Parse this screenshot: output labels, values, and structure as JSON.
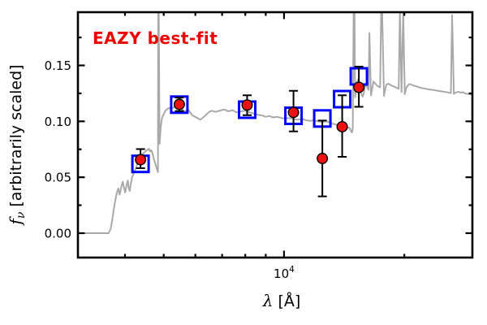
{
  "figure": {
    "annotation": "EAZY best-fit",
    "annotation_color": "#ee0000",
    "colors": {
      "background": "#ffffff",
      "axes": "#000000",
      "spectrum_line": "#a9a9a9",
      "observed_marker": "#ee1111",
      "observed_marker_edge": "#000000",
      "errorbar": "#000000",
      "model_marker": "#0000ff"
    }
  },
  "chart_data": {
    "type": "line",
    "title": "",
    "xlabel_symbol": "λ",
    "xlabel_unit": " [Å]",
    "ylabel_symbol": "f",
    "ylabel_sub": "ν",
    "ylabel_rest": " [arbitrarily scaled]",
    "x_scale": "log",
    "xlim": [
      3050,
      29600
    ],
    "ylim": [
      -0.0218,
      0.1976
    ],
    "grid": false,
    "legend": "none",
    "x_ticks_major": [
      10000
    ],
    "x_tick_major_labels": [
      {
        "base": "10",
        "exp": "4"
      }
    ],
    "x_ticks_minor": [
      4000,
      5000,
      6000,
      7000,
      8000,
      9000,
      20000
    ],
    "y_ticks_major": [
      0.0,
      0.05,
      0.1,
      0.15
    ],
    "y_tick_major_labels": [
      "0.00",
      "0.05",
      "0.10",
      "0.15"
    ],
    "y_ticks_minor": [
      0.025,
      0.075,
      0.125,
      0.175
    ],
    "series": [
      {
        "name": "EAZY best-fit template spectrum",
        "type": "line",
        "color": "#a9a9a9",
        "points": [
          [
            3050,
            0.0
          ],
          [
            3200,
            0.0
          ],
          [
            3400,
            0.0
          ],
          [
            3640,
            0.0
          ],
          [
            3685,
            0.004
          ],
          [
            3720,
            0.013
          ],
          [
            3755,
            0.023
          ],
          [
            3790,
            0.031
          ],
          [
            3822,
            0.037
          ],
          [
            3850,
            0.04
          ],
          [
            3876,
            0.0345
          ],
          [
            3898,
            0.038
          ],
          [
            3922,
            0.0425
          ],
          [
            3950,
            0.046
          ],
          [
            3980,
            0.04
          ],
          [
            4006,
            0.0365
          ],
          [
            4036,
            0.043
          ],
          [
            4066,
            0.047
          ],
          [
            4088,
            0.04
          ],
          [
            4112,
            0.0378
          ],
          [
            4136,
            0.044
          ],
          [
            4166,
            0.05
          ],
          [
            4206,
            0.0535
          ],
          [
            4256,
            0.058
          ],
          [
            4312,
            0.0635
          ],
          [
            4376,
            0.068
          ],
          [
            4440,
            0.0712
          ],
          [
            4512,
            0.0736
          ],
          [
            4556,
            0.0746
          ],
          [
            4590,
            0.0755
          ],
          [
            4622,
            0.0733
          ],
          [
            4656,
            0.074
          ],
          [
            4690,
            0.071
          ],
          [
            4726,
            0.066
          ],
          [
            4766,
            0.0616
          ],
          [
            4806,
            0.0576
          ],
          [
            4836,
            0.0546
          ],
          [
            4843,
            0.198
          ],
          [
            4860,
            0.198
          ],
          [
            4882,
            0.08
          ],
          [
            4916,
            0.0952
          ],
          [
            4950,
            0.103
          ],
          [
            5000,
            0.1066
          ],
          [
            5060,
            0.11
          ],
          [
            5122,
            0.1116
          ],
          [
            5246,
            0.1122
          ],
          [
            5370,
            0.1126
          ],
          [
            5496,
            0.1118
          ],
          [
            5560,
            0.1106
          ],
          [
            5626,
            0.1088
          ],
          [
            5690,
            0.1096
          ],
          [
            5760,
            0.1103
          ],
          [
            5830,
            0.1078
          ],
          [
            5896,
            0.1053
          ],
          [
            5966,
            0.1043
          ],
          [
            6030,
            0.1036
          ],
          [
            6100,
            0.1025
          ],
          [
            6170,
            0.1015
          ],
          [
            6240,
            0.1028
          ],
          [
            6316,
            0.1043
          ],
          [
            6390,
            0.106
          ],
          [
            6466,
            0.1078
          ],
          [
            6540,
            0.109
          ],
          [
            6616,
            0.1094
          ],
          [
            6690,
            0.1088
          ],
          [
            6770,
            0.1085
          ],
          [
            6850,
            0.1092
          ],
          [
            6930,
            0.1097
          ],
          [
            7010,
            0.1103
          ],
          [
            7090,
            0.1105
          ],
          [
            7176,
            0.1098
          ],
          [
            7260,
            0.109
          ],
          [
            7346,
            0.1095
          ],
          [
            7430,
            0.11
          ],
          [
            7520,
            0.109
          ],
          [
            7606,
            0.108
          ],
          [
            7696,
            0.1084
          ],
          [
            7786,
            0.1088
          ],
          [
            7880,
            0.1092
          ],
          [
            7986,
            0.1095
          ],
          [
            8080,
            0.1089
          ],
          [
            8176,
            0.1082
          ],
          [
            8270,
            0.1077
          ],
          [
            8366,
            0.1072
          ],
          [
            8460,
            0.1066
          ],
          [
            8560,
            0.106
          ],
          [
            8660,
            0.1057
          ],
          [
            8766,
            0.1053
          ],
          [
            8866,
            0.105
          ],
          [
            8970,
            0.104
          ],
          [
            9076,
            0.1044
          ],
          [
            9180,
            0.1048
          ],
          [
            9290,
            0.1041
          ],
          [
            9396,
            0.1035
          ],
          [
            9506,
            0.1038
          ],
          [
            9616,
            0.104
          ],
          [
            9726,
            0.1035
          ],
          [
            9840,
            0.103
          ],
          [
            9966,
            0.1027
          ],
          [
            10096,
            0.1025
          ],
          [
            10216,
            0.1028
          ],
          [
            10330,
            0.103
          ],
          [
            10450,
            0.1025
          ],
          [
            10576,
            0.102
          ],
          [
            10700,
            0.1017
          ],
          [
            10820,
            0.1015
          ],
          [
            10946,
            0.1018
          ],
          [
            11076,
            0.1022
          ],
          [
            11210,
            0.1016
          ],
          [
            11340,
            0.101
          ],
          [
            11470,
            0.1007
          ],
          [
            11606,
            0.1005
          ],
          [
            11740,
            0.1007
          ],
          [
            11880,
            0.101
          ],
          [
            12016,
            0.1005
          ],
          [
            12156,
            0.1
          ],
          [
            12296,
            0.0997
          ],
          [
            12440,
            0.0995
          ],
          [
            12586,
            0.0997
          ],
          [
            12736,
            0.1
          ],
          [
            12886,
            0.0995
          ],
          [
            13036,
            0.099
          ],
          [
            13186,
            0.0982
          ],
          [
            13340,
            0.0975
          ],
          [
            13496,
            0.097
          ],
          [
            13656,
            0.0965
          ],
          [
            13816,
            0.0957
          ],
          [
            13976,
            0.095
          ],
          [
            14140,
            0.0942
          ],
          [
            14306,
            0.0938
          ],
          [
            14450,
            0.0946
          ],
          [
            14600,
            0.094
          ],
          [
            14720,
            0.0912
          ],
          [
            14790,
            0.09
          ],
          [
            14860,
            0.093
          ],
          [
            14935,
            0.198
          ],
          [
            15010,
            0.198
          ],
          [
            15060,
            0.1215
          ],
          [
            15180,
            0.1345
          ],
          [
            15320,
            0.1372
          ],
          [
            15460,
            0.133
          ],
          [
            15610,
            0.1245
          ],
          [
            15730,
            0.1222
          ],
          [
            15850,
            0.1258
          ],
          [
            15980,
            0.133
          ],
          [
            16120,
            0.1312
          ],
          [
            16270,
            0.1282
          ],
          [
            16355,
            0.179
          ],
          [
            16500,
            0.1232
          ],
          [
            16640,
            0.13
          ],
          [
            16740,
            0.1356
          ],
          [
            16880,
            0.1342
          ],
          [
            17070,
            0.1322
          ],
          [
            17210,
            0.1312
          ],
          [
            17390,
            0.1305
          ],
          [
            17500,
            0.198
          ],
          [
            17600,
            0.198
          ],
          [
            17790,
            0.1228
          ],
          [
            17930,
            0.1292
          ],
          [
            18040,
            0.133
          ],
          [
            18260,
            0.1336
          ],
          [
            18520,
            0.1322
          ],
          [
            18820,
            0.1312
          ],
          [
            19080,
            0.1302
          ],
          [
            19360,
            0.1292
          ],
          [
            19500,
            0.198
          ],
          [
            19680,
            0.1262
          ],
          [
            19870,
            0.198
          ],
          [
            20050,
            0.1242
          ],
          [
            20250,
            0.1305
          ],
          [
            20500,
            0.1328
          ],
          [
            20660,
            0.1333
          ],
          [
            21000,
            0.1323
          ],
          [
            21330,
            0.1315
          ],
          [
            21650,
            0.1308
          ],
          [
            22000,
            0.13
          ],
          [
            22330,
            0.1295
          ],
          [
            22690,
            0.129
          ],
          [
            23100,
            0.1285
          ],
          [
            23500,
            0.1282
          ],
          [
            23900,
            0.1277
          ],
          [
            24350,
            0.1272
          ],
          [
            24900,
            0.1267
          ],
          [
            25400,
            0.1262
          ],
          [
            25900,
            0.1256
          ],
          [
            26150,
            0.1252
          ],
          [
            26330,
            0.195
          ],
          [
            26610,
            0.1246
          ],
          [
            26900,
            0.1258
          ],
          [
            27350,
            0.1264
          ],
          [
            27700,
            0.1255
          ],
          [
            27990,
            0.1261
          ],
          [
            28350,
            0.125
          ],
          [
            28700,
            0.1246
          ],
          [
            29100,
            0.1243
          ],
          [
            29600,
            0.1238
          ]
        ]
      },
      {
        "name": "model photometry (template fluxes)",
        "type": "scatter-open-square",
        "color": "#0000ff",
        "points": [
          [
            4375,
            0.062
          ],
          [
            5470,
            0.1149
          ],
          [
            8085,
            0.1104
          ],
          [
            10560,
            0.105
          ],
          [
            12470,
            0.1026
          ],
          [
            13980,
            0.1199
          ],
          [
            15390,
            0.1402
          ]
        ]
      },
      {
        "name": "observed photometry",
        "type": "scatter-circle-errorbar",
        "color": "#ee1111",
        "points": [
          {
            "lambda": 4375,
            "flux": 0.0657,
            "err_up": 0.0095,
            "err_down": 0.0076
          },
          {
            "lambda": 5470,
            "flux": 0.1152,
            "err_up": 0.006,
            "err_down": 0.006
          },
          {
            "lambda": 8085,
            "flux": 0.1146,
            "err_up": 0.0087,
            "err_down": 0.0091
          },
          {
            "lambda": 10560,
            "flux": 0.108,
            "err_up": 0.0193,
            "err_down": 0.017
          },
          {
            "lambda": 12470,
            "flux": 0.0668,
            "err_up": 0.0339,
            "err_down": 0.0339
          },
          {
            "lambda": 13980,
            "flux": 0.0952,
            "err_up": 0.0281,
            "err_down": 0.0269
          },
          {
            "lambda": 15390,
            "flux": 0.1304,
            "err_up": 0.0185,
            "err_down": 0.0174
          }
        ]
      }
    ]
  }
}
